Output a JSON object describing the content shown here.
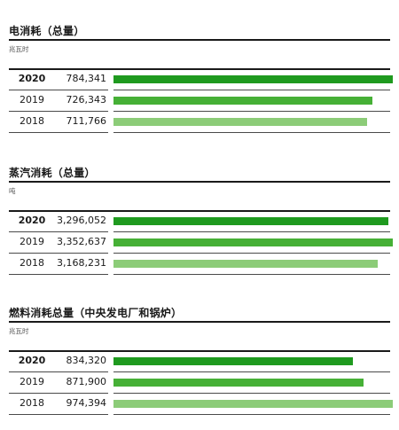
{
  "chart_data": [
    {
      "type": "bar",
      "orientation": "horizontal",
      "title": "电消耗（总量）",
      "unit": "兆瓦时",
      "categories": [
        "2020",
        "2019",
        "2018"
      ],
      "value_labels": [
        "784,341",
        "726,343",
        "711,766"
      ],
      "values": [
        784341,
        726343,
        711766
      ]
    },
    {
      "type": "bar",
      "orientation": "horizontal",
      "title": "蒸汽消耗（总量）",
      "unit": "吨",
      "categories": [
        "2020",
        "2019",
        "2018"
      ],
      "value_labels": [
        "3,296,052",
        "3,352,637",
        "3,168,231"
      ],
      "values": [
        3296052,
        3352637,
        3168231
      ]
    },
    {
      "type": "bar",
      "orientation": "horizontal",
      "title": "燃料消耗总量（中央发电厂和锅炉）",
      "unit": "兆瓦时",
      "categories": [
        "2020",
        "2019",
        "2018"
      ],
      "value_labels": [
        "834,320",
        "871,900",
        "974,394"
      ],
      "values": [
        834320,
        871900,
        974394
      ]
    }
  ],
  "colors": {
    "current_year_bar": "#1f9a1f",
    "prior_year_bar": "#46b036",
    "oldest_year_bar": "#8ccc78",
    "rule": "#1a1a1a"
  }
}
